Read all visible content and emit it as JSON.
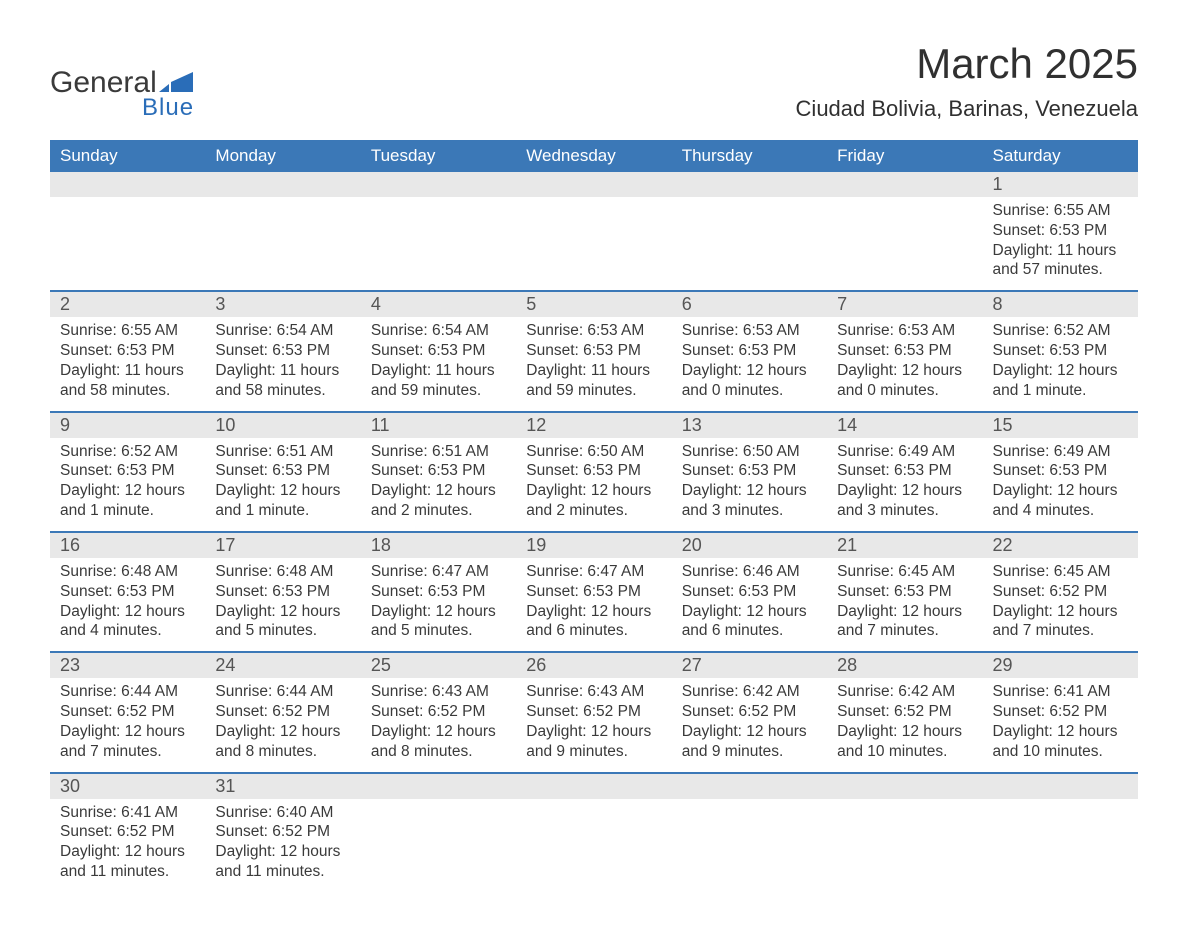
{
  "logo": {
    "word1": "General",
    "word2": "Blue"
  },
  "title": "March 2025",
  "subtitle": "Ciudad Bolivia, Barinas, Venezuela",
  "colors": {
    "header_bg": "#3b78b7",
    "header_text": "#ffffff",
    "daynum_bg": "#e8e8e8",
    "daynum_text": "#555555",
    "body_text": "#3a3a3a",
    "row_border": "#3b78b7",
    "logo_blue": "#2a6db8",
    "logo_dark": "#3a3a3a",
    "page_bg": "#ffffff"
  },
  "typography": {
    "title_fontsize": 42,
    "subtitle_fontsize": 22,
    "header_fontsize": 17,
    "daynum_fontsize": 18,
    "content_fontsize": 15.5,
    "font_family": "Arial"
  },
  "layout": {
    "columns": 7,
    "rows": 6,
    "start_day_index": 6
  },
  "day_headers": [
    "Sunday",
    "Monday",
    "Tuesday",
    "Wednesday",
    "Thursday",
    "Friday",
    "Saturday"
  ],
  "weeks": [
    [
      null,
      null,
      null,
      null,
      null,
      null,
      {
        "n": "1",
        "sunrise": "Sunrise: 6:55 AM",
        "sunset": "Sunset: 6:53 PM",
        "daylight": "Daylight: 11 hours and 57 minutes."
      }
    ],
    [
      {
        "n": "2",
        "sunrise": "Sunrise: 6:55 AM",
        "sunset": "Sunset: 6:53 PM",
        "daylight": "Daylight: 11 hours and 58 minutes."
      },
      {
        "n": "3",
        "sunrise": "Sunrise: 6:54 AM",
        "sunset": "Sunset: 6:53 PM",
        "daylight": "Daylight: 11 hours and 58 minutes."
      },
      {
        "n": "4",
        "sunrise": "Sunrise: 6:54 AM",
        "sunset": "Sunset: 6:53 PM",
        "daylight": "Daylight: 11 hours and 59 minutes."
      },
      {
        "n": "5",
        "sunrise": "Sunrise: 6:53 AM",
        "sunset": "Sunset: 6:53 PM",
        "daylight": "Daylight: 11 hours and 59 minutes."
      },
      {
        "n": "6",
        "sunrise": "Sunrise: 6:53 AM",
        "sunset": "Sunset: 6:53 PM",
        "daylight": "Daylight: 12 hours and 0 minutes."
      },
      {
        "n": "7",
        "sunrise": "Sunrise: 6:53 AM",
        "sunset": "Sunset: 6:53 PM",
        "daylight": "Daylight: 12 hours and 0 minutes."
      },
      {
        "n": "8",
        "sunrise": "Sunrise: 6:52 AM",
        "sunset": "Sunset: 6:53 PM",
        "daylight": "Daylight: 12 hours and 1 minute."
      }
    ],
    [
      {
        "n": "9",
        "sunrise": "Sunrise: 6:52 AM",
        "sunset": "Sunset: 6:53 PM",
        "daylight": "Daylight: 12 hours and 1 minute."
      },
      {
        "n": "10",
        "sunrise": "Sunrise: 6:51 AM",
        "sunset": "Sunset: 6:53 PM",
        "daylight": "Daylight: 12 hours and 1 minute."
      },
      {
        "n": "11",
        "sunrise": "Sunrise: 6:51 AM",
        "sunset": "Sunset: 6:53 PM",
        "daylight": "Daylight: 12 hours and 2 minutes."
      },
      {
        "n": "12",
        "sunrise": "Sunrise: 6:50 AM",
        "sunset": "Sunset: 6:53 PM",
        "daylight": "Daylight: 12 hours and 2 minutes."
      },
      {
        "n": "13",
        "sunrise": "Sunrise: 6:50 AM",
        "sunset": "Sunset: 6:53 PM",
        "daylight": "Daylight: 12 hours and 3 minutes."
      },
      {
        "n": "14",
        "sunrise": "Sunrise: 6:49 AM",
        "sunset": "Sunset: 6:53 PM",
        "daylight": "Daylight: 12 hours and 3 minutes."
      },
      {
        "n": "15",
        "sunrise": "Sunrise: 6:49 AM",
        "sunset": "Sunset: 6:53 PM",
        "daylight": "Daylight: 12 hours and 4 minutes."
      }
    ],
    [
      {
        "n": "16",
        "sunrise": "Sunrise: 6:48 AM",
        "sunset": "Sunset: 6:53 PM",
        "daylight": "Daylight: 12 hours and 4 minutes."
      },
      {
        "n": "17",
        "sunrise": "Sunrise: 6:48 AM",
        "sunset": "Sunset: 6:53 PM",
        "daylight": "Daylight: 12 hours and 5 minutes."
      },
      {
        "n": "18",
        "sunrise": "Sunrise: 6:47 AM",
        "sunset": "Sunset: 6:53 PM",
        "daylight": "Daylight: 12 hours and 5 minutes."
      },
      {
        "n": "19",
        "sunrise": "Sunrise: 6:47 AM",
        "sunset": "Sunset: 6:53 PM",
        "daylight": "Daylight: 12 hours and 6 minutes."
      },
      {
        "n": "20",
        "sunrise": "Sunrise: 6:46 AM",
        "sunset": "Sunset: 6:53 PM",
        "daylight": "Daylight: 12 hours and 6 minutes."
      },
      {
        "n": "21",
        "sunrise": "Sunrise: 6:45 AM",
        "sunset": "Sunset: 6:53 PM",
        "daylight": "Daylight: 12 hours and 7 minutes."
      },
      {
        "n": "22",
        "sunrise": "Sunrise: 6:45 AM",
        "sunset": "Sunset: 6:52 PM",
        "daylight": "Daylight: 12 hours and 7 minutes."
      }
    ],
    [
      {
        "n": "23",
        "sunrise": "Sunrise: 6:44 AM",
        "sunset": "Sunset: 6:52 PM",
        "daylight": "Daylight: 12 hours and 7 minutes."
      },
      {
        "n": "24",
        "sunrise": "Sunrise: 6:44 AM",
        "sunset": "Sunset: 6:52 PM",
        "daylight": "Daylight: 12 hours and 8 minutes."
      },
      {
        "n": "25",
        "sunrise": "Sunrise: 6:43 AM",
        "sunset": "Sunset: 6:52 PM",
        "daylight": "Daylight: 12 hours and 8 minutes."
      },
      {
        "n": "26",
        "sunrise": "Sunrise: 6:43 AM",
        "sunset": "Sunset: 6:52 PM",
        "daylight": "Daylight: 12 hours and 9 minutes."
      },
      {
        "n": "27",
        "sunrise": "Sunrise: 6:42 AM",
        "sunset": "Sunset: 6:52 PM",
        "daylight": "Daylight: 12 hours and 9 minutes."
      },
      {
        "n": "28",
        "sunrise": "Sunrise: 6:42 AM",
        "sunset": "Sunset: 6:52 PM",
        "daylight": "Daylight: 12 hours and 10 minutes."
      },
      {
        "n": "29",
        "sunrise": "Sunrise: 6:41 AM",
        "sunset": "Sunset: 6:52 PM",
        "daylight": "Daylight: 12 hours and 10 minutes."
      }
    ],
    [
      {
        "n": "30",
        "sunrise": "Sunrise: 6:41 AM",
        "sunset": "Sunset: 6:52 PM",
        "daylight": "Daylight: 12 hours and 11 minutes."
      },
      {
        "n": "31",
        "sunrise": "Sunrise: 6:40 AM",
        "sunset": "Sunset: 6:52 PM",
        "daylight": "Daylight: 12 hours and 11 minutes."
      },
      null,
      null,
      null,
      null,
      null
    ]
  ]
}
